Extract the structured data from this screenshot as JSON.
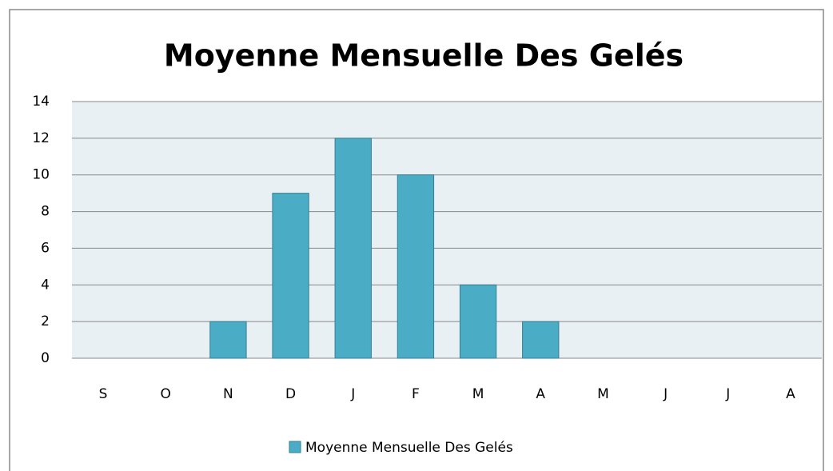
{
  "chart_data": {
    "type": "bar",
    "title": "Moyenne Mensuelle  Des Gelés",
    "categories": [
      "S",
      "O",
      "N",
      "D",
      "J",
      "F",
      "M",
      "A",
      "M",
      "J",
      "J",
      "A"
    ],
    "series": [
      {
        "name": "Moyenne Mensuelle  Des Gelés",
        "color": "#4bacc6",
        "values": [
          0,
          0,
          2,
          9,
          12,
          10,
          4,
          2,
          0,
          0,
          0,
          0
        ]
      }
    ],
    "ylim": [
      0,
      14
    ],
    "yticks": [
      0,
      2,
      4,
      6,
      8,
      10,
      12,
      14
    ],
    "grid": true,
    "legend": "bottom"
  }
}
